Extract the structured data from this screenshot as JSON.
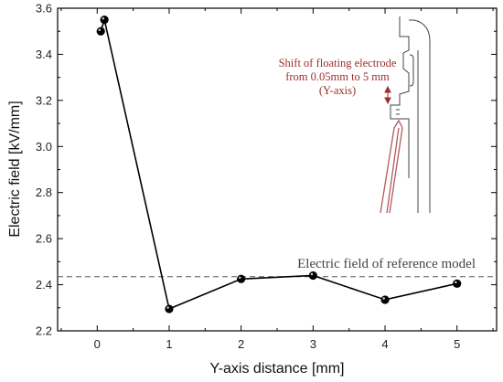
{
  "chart_data": {
    "type": "line",
    "xlabel": "Y-axis distance [mm]",
    "ylabel": "Electric field [kV/mm]",
    "xlim": [
      -0.55,
      5.55
    ],
    "ylim": [
      2.2,
      3.6
    ],
    "xticks": [
      0,
      1,
      2,
      3,
      4,
      5
    ],
    "yticks": [
      2.2,
      2.4,
      2.6,
      2.8,
      3.0,
      3.2,
      3.4,
      3.6
    ],
    "xtick_labels": [
      "0",
      "1",
      "2",
      "3",
      "4",
      "5"
    ],
    "ytick_labels": [
      "2.2",
      "2.4",
      "2.6",
      "2.8",
      "3.0",
      "3.2",
      "3.4",
      "3.6"
    ],
    "series": [
      {
        "x": [
          0.05,
          0.1,
          1,
          2,
          3,
          4,
          5
        ],
        "y": [
          3.5,
          3.55,
          2.295,
          2.425,
          2.44,
          2.335,
          2.405
        ],
        "color": "#000000"
      }
    ],
    "reference_line": {
      "y": 2.435,
      "label": "Electric field of reference model",
      "style": "dashed",
      "color": "#555555"
    },
    "inset": {
      "caption_lines": [
        "Shift of floating electrode",
        "from 0.05mm to 5 mm",
        "(Y-axis)"
      ],
      "caption_color": "#9b2d2d",
      "electrode_color": "#b35a5a",
      "structure_color": "#444444"
    },
    "grid": false,
    "legend": "none"
  }
}
